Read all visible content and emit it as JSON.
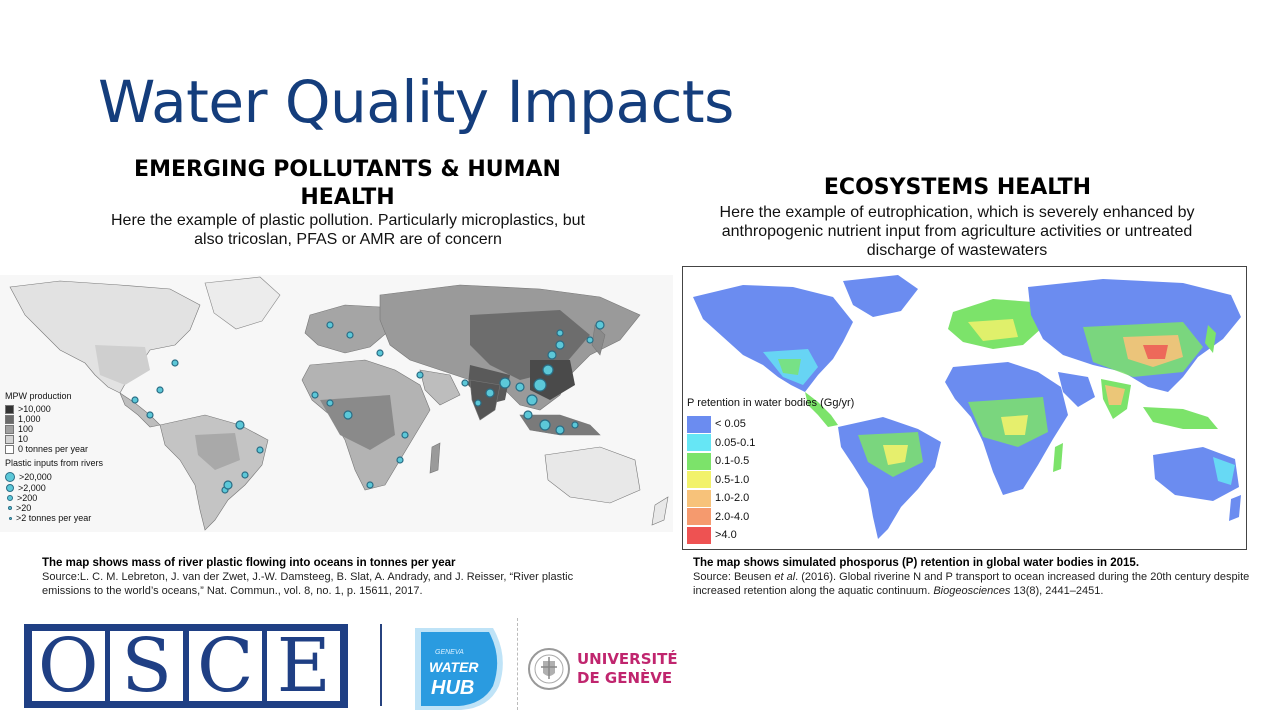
{
  "title": "Water Quality Impacts",
  "left": {
    "heading": "EMERGING POLLUTANTS & HUMAN HEALTH",
    "description": "Here the example of plastic pollution. Particularly microplastics, but also tricoslan, PFAS or AMR are of concern",
    "legend": {
      "title_1": "MPW production",
      "production": [
        ">10,000",
        "1,000",
        "100",
        "10",
        "0 tonnes per year"
      ],
      "title_2": "Plastic inputs from rivers",
      "inputs": [
        ">20,000",
        ">2,000",
        ">200",
        ">20",
        ">2 tonnes per year"
      ]
    },
    "caption_title": "The map shows mass of river plastic flowing into oceans in tonnes per year",
    "caption_source": "Source:L. C. M. Lebreton, J. van der Zwet, J.-W. Damsteeg, B. Slat, A. Andrady, and J. Reisser, “River plastic emissions to the world’s oceans,” Nat. Commun., vol. 8, no. 1, p. 15611, 2017."
  },
  "right": {
    "heading": "ECOSYSTEMS HEALTH",
    "description": "Here the example of eutrophication, which is severely enhanced by anthropogenic nutrient input from agriculture activities or untreated discharge of wastewaters",
    "legend": {
      "title": "P retention in water bodies (Gg/yr)",
      "classes": [
        "< 0.05",
        "0.05-0.1",
        "0.1-0.5",
        "0.5-1.0",
        "1.0-2.0",
        "2.0-4.0",
        ">4.0"
      ],
      "colors": [
        "#6b8cf0",
        "#66e6f5",
        "#7ce36a",
        "#f2f26b",
        "#f7c27a",
        "#f59a6e",
        "#ee5252"
      ]
    },
    "caption_title": "The map shows simulated phosporus (P) retention in global water bodies in 2015.",
    "caption_source_pre": "Source: Beusen",
    "caption_source_em": "et al",
    "caption_source_mid": ". (2016). Global riverine N and P transport to ocean increased during the 20th century despite increased retention along the aquatic continuum.",
    "caption_journal": "Biogeosciences",
    "caption_source_end": "13(8), 2441–2451."
  },
  "logos": {
    "osce_letters": [
      "O",
      "S",
      "C",
      "E"
    ],
    "waterhub_top": "GENEVA",
    "waterhub_mid": "WATER",
    "waterhub_bottom": "HUB",
    "unige_line1": "UNIVERSITÉ",
    "unige_line2": "DE GENÈVE"
  },
  "colors": {
    "title": "#143d7c",
    "osce_blue": "#1f3f84",
    "unige_magenta": "#c0256e",
    "waterhub_blue": "#1c6fc0"
  }
}
